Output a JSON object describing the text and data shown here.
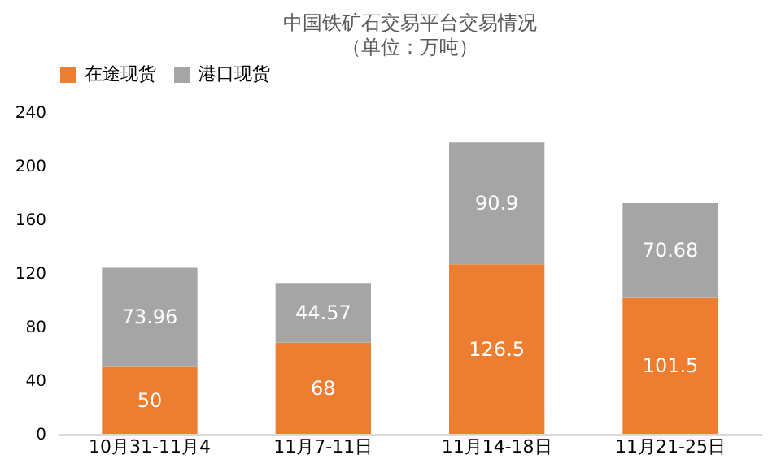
{
  "chart_data": {
    "type": "bar",
    "title": "中国铁矿石交易平台交易情况",
    "subtitle": "（单位：万吨）",
    "categories": [
      "10月31-11月4",
      "11月7-11日",
      "11月14-18日",
      "11月21-25日"
    ],
    "series": [
      {
        "name": "在途现货",
        "color": "#ed7d31",
        "values": [
          50,
          68,
          126.5,
          101.5
        ]
      },
      {
        "name": "港口现货",
        "color": "#a5a5a5",
        "values": [
          73.96,
          44.57,
          90.9,
          70.68
        ]
      }
    ],
    "stacked": true,
    "ylim": [
      0,
      240
    ],
    "yticks": [
      0,
      40,
      80,
      120,
      160,
      200,
      240
    ],
    "data_labels": true,
    "legend": "top",
    "grid": false
  }
}
